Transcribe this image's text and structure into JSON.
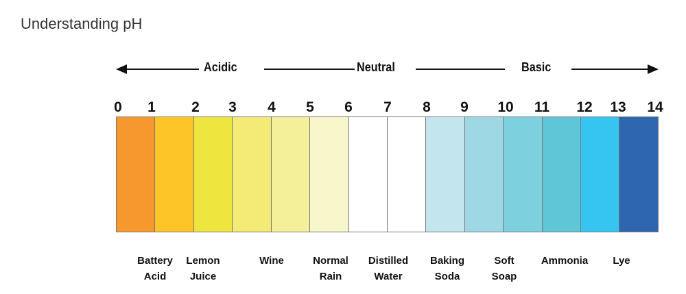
{
  "title": "Understanding pH",
  "directions": {
    "acidic": "Acidic",
    "neutral": "Neutral",
    "basic": "Basic"
  },
  "scale_ticks": [
    "0",
    "1",
    "2",
    "3",
    "4",
    "5",
    "6",
    "7",
    "8",
    "9",
    "10",
    "11",
    "12",
    "13",
    "14"
  ],
  "segment_colors": [
    "#F7982E",
    "#FDC528",
    "#EEE63F",
    "#F3EB76",
    "#F4F09A",
    "#F8F6CA",
    "#FFFFFF",
    "#FFFFFF",
    "#C3E6EE",
    "#9DD8E4",
    "#7DD0DE",
    "#5EC6D6",
    "#36C5F0",
    "#2F66B0"
  ],
  "examples": [
    {
      "line1": "Battery",
      "line2": "Acid"
    },
    {
      "line1": "Lemon",
      "line2": "Juice"
    },
    {
      "line1": "Wine",
      "line2": ""
    },
    {
      "line1": "Normal",
      "line2": "Rain"
    },
    {
      "line1": "Distilled",
      "line2": "Water"
    },
    {
      "line1": "Baking",
      "line2": "Soda"
    },
    {
      "line1": "Soft",
      "line2": "Soap"
    },
    {
      "line1": "Ammonia",
      "line2": ""
    },
    {
      "line1": "Lye",
      "line2": ""
    }
  ]
}
